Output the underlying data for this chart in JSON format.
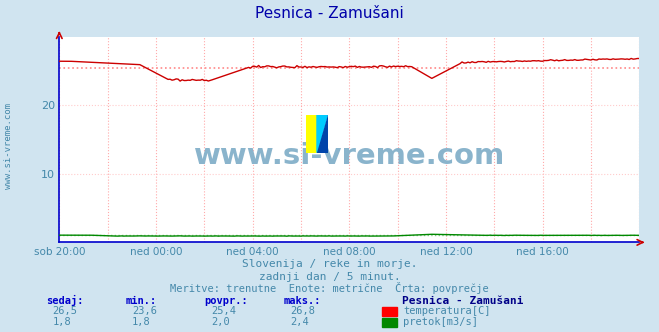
{
  "title": "Pesnica - Zamušani",
  "bg_color": "#d0e4f0",
  "plot_bg_color": "#ffffff",
  "grid_color_v": "#ffaaaa",
  "grid_color_h": "#ffcccc",
  "xlim": [
    0,
    288
  ],
  "ylim": [
    0,
    30
  ],
  "yticks": [
    10,
    20
  ],
  "xtick_labels": [
    "sob 20:00",
    "ned 00:00",
    "ned 04:00",
    "ned 08:00",
    "ned 12:00",
    "ned 16:00"
  ],
  "xtick_positions": [
    0,
    48,
    96,
    144,
    192,
    240
  ],
  "temp_color": "#cc0000",
  "flow_color": "#008800",
  "avg_temp_color": "#ff8888",
  "avg_flow_color": "#88cc88",
  "watermark_text": "www.si-vreme.com",
  "watermark_color": "#8ab4cc",
  "subtitle1": "Slovenija / reke in morje.",
  "subtitle2": "zadnji dan / 5 minut.",
  "subtitle3": "Meritve: trenutne  Enote: metrične  Črta: povprečje",
  "subtitle_color": "#4488aa",
  "legend_title": "Pesnica - Zamušani",
  "legend_title_color": "#000088",
  "label_color": "#0000cc",
  "temp_min": 23.6,
  "temp_max": 26.8,
  "temp_avg": 25.4,
  "temp_cur": 26.5,
  "flow_min": 1.8,
  "flow_max": 2.4,
  "flow_avg": 2.0,
  "flow_cur": 1.8,
  "sidebar_text": "www.si-vreme.com",
  "sidebar_color": "#4488aa",
  "spine_color": "#0000cc",
  "arrow_color": "#cc0000"
}
